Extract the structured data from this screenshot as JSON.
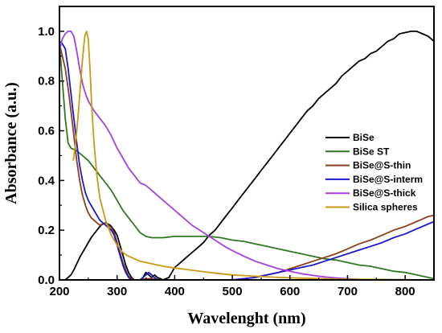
{
  "chart_data": {
    "type": "line",
    "xlabel": "Wavelenght (nm)",
    "ylabel": "Absorbance (a.u.)",
    "xlim": [
      200,
      850
    ],
    "ylim": [
      0.0,
      1.1
    ],
    "xticks": [
      200,
      300,
      400,
      500,
      600,
      700,
      800
    ],
    "yticks": [
      0.0,
      0.2,
      0.4,
      0.6,
      0.8,
      1.0
    ],
    "grid": false,
    "legend_position": "right",
    "series": [
      {
        "name": "BiSe",
        "color": "#000000",
        "points": [
          [
            200,
            0.0
          ],
          [
            210,
            0.0
          ],
          [
            220,
            0.02
          ],
          [
            225,
            0.04
          ],
          [
            235,
            0.09
          ],
          [
            245,
            0.13
          ],
          [
            255,
            0.17
          ],
          [
            265,
            0.2
          ],
          [
            272,
            0.22
          ],
          [
            280,
            0.23
          ],
          [
            288,
            0.22
          ],
          [
            295,
            0.2
          ],
          [
            300,
            0.18
          ],
          [
            305,
            0.14
          ],
          [
            310,
            0.1
          ],
          [
            315,
            0.06
          ],
          [
            320,
            0.03
          ],
          [
            325,
            0.01
          ],
          [
            330,
            0.0
          ],
          [
            340,
            0.0
          ],
          [
            345,
            0.01
          ],
          [
            350,
            0.03
          ],
          [
            355,
            0.02
          ],
          [
            360,
            0.01
          ],
          [
            365,
            0.02
          ],
          [
            370,
            0.01
          ],
          [
            380,
            0.0
          ],
          [
            390,
            0.01
          ],
          [
            395,
            0.03
          ],
          [
            400,
            0.05
          ],
          [
            410,
            0.07
          ],
          [
            420,
            0.09
          ],
          [
            430,
            0.11
          ],
          [
            440,
            0.13
          ],
          [
            450,
            0.15
          ],
          [
            460,
            0.18
          ],
          [
            470,
            0.2
          ],
          [
            480,
            0.23
          ],
          [
            490,
            0.26
          ],
          [
            500,
            0.29
          ],
          [
            510,
            0.32
          ],
          [
            520,
            0.35
          ],
          [
            530,
            0.38
          ],
          [
            540,
            0.41
          ],
          [
            550,
            0.44
          ],
          [
            560,
            0.47
          ],
          [
            570,
            0.5
          ],
          [
            580,
            0.53
          ],
          [
            590,
            0.56
          ],
          [
            600,
            0.59
          ],
          [
            610,
            0.62
          ],
          [
            620,
            0.65
          ],
          [
            630,
            0.68
          ],
          [
            640,
            0.7
          ],
          [
            650,
            0.73
          ],
          [
            660,
            0.75
          ],
          [
            670,
            0.77
          ],
          [
            680,
            0.79
          ],
          [
            690,
            0.82
          ],
          [
            700,
            0.84
          ],
          [
            710,
            0.86
          ],
          [
            720,
            0.88
          ],
          [
            730,
            0.89
          ],
          [
            740,
            0.91
          ],
          [
            750,
            0.92
          ],
          [
            760,
            0.94
          ],
          [
            770,
            0.96
          ],
          [
            780,
            0.97
          ],
          [
            790,
            0.99
          ],
          [
            800,
            0.995
          ],
          [
            810,
            1.0
          ],
          [
            820,
            1.0
          ],
          [
            830,
            0.99
          ],
          [
            840,
            0.98
          ],
          [
            850,
            0.96
          ]
        ]
      },
      {
        "name": "BiSe ST",
        "color": "#2d7a1e",
        "points": [
          [
            200,
            0.95
          ],
          [
            205,
            0.8
          ],
          [
            210,
            0.65
          ],
          [
            215,
            0.55
          ],
          [
            220,
            0.53
          ],
          [
            230,
            0.52
          ],
          [
            240,
            0.5
          ],
          [
            250,
            0.48
          ],
          [
            260,
            0.45
          ],
          [
            270,
            0.42
          ],
          [
            280,
            0.39
          ],
          [
            290,
            0.36
          ],
          [
            300,
            0.32
          ],
          [
            310,
            0.28
          ],
          [
            320,
            0.25
          ],
          [
            330,
            0.22
          ],
          [
            340,
            0.19
          ],
          [
            350,
            0.175
          ],
          [
            360,
            0.17
          ],
          [
            380,
            0.17
          ],
          [
            400,
            0.175
          ],
          [
            430,
            0.175
          ],
          [
            460,
            0.175
          ],
          [
            480,
            0.17
          ],
          [
            500,
            0.16
          ],
          [
            520,
            0.155
          ],
          [
            540,
            0.145
          ],
          [
            560,
            0.135
          ],
          [
            580,
            0.125
          ],
          [
            600,
            0.115
          ],
          [
            620,
            0.105
          ],
          [
            640,
            0.095
          ],
          [
            660,
            0.085
          ],
          [
            680,
            0.08
          ],
          [
            700,
            0.07
          ],
          [
            720,
            0.06
          ],
          [
            740,
            0.055
          ],
          [
            760,
            0.045
          ],
          [
            780,
            0.035
          ],
          [
            800,
            0.03
          ],
          [
            820,
            0.02
          ],
          [
            840,
            0.01
          ],
          [
            850,
            0.005
          ]
        ]
      },
      {
        "name": "BiSe@S-thin",
        "color": "#8b3f1a",
        "points": [
          [
            200,
            0.95
          ],
          [
            205,
            0.9
          ],
          [
            210,
            0.85
          ],
          [
            215,
            0.77
          ],
          [
            220,
            0.68
          ],
          [
            225,
            0.58
          ],
          [
            230,
            0.48
          ],
          [
            235,
            0.4
          ],
          [
            240,
            0.34
          ],
          [
            245,
            0.3
          ],
          [
            250,
            0.27
          ],
          [
            255,
            0.25
          ],
          [
            260,
            0.24
          ],
          [
            265,
            0.23
          ],
          [
            270,
            0.22
          ],
          [
            280,
            0.23
          ],
          [
            290,
            0.21
          ],
          [
            295,
            0.19
          ],
          [
            300,
            0.15
          ],
          [
            305,
            0.11
          ],
          [
            310,
            0.07
          ],
          [
            315,
            0.04
          ],
          [
            320,
            0.015
          ],
          [
            325,
            0.005
          ],
          [
            330,
            0.0
          ],
          [
            340,
            0.0
          ],
          [
            350,
            0.005
          ],
          [
            360,
            0.005
          ],
          [
            380,
            0.0
          ],
          [
            400,
            0.0
          ],
          [
            420,
            0.0
          ],
          [
            440,
            0.0
          ],
          [
            460,
            0.0
          ],
          [
            480,
            0.0
          ],
          [
            500,
            0.0
          ],
          [
            520,
            0.005
          ],
          [
            540,
            0.01
          ],
          [
            560,
            0.02
          ],
          [
            580,
            0.03
          ],
          [
            600,
            0.045
          ],
          [
            620,
            0.06
          ],
          [
            640,
            0.075
          ],
          [
            660,
            0.09
          ],
          [
            680,
            0.105
          ],
          [
            700,
            0.125
          ],
          [
            720,
            0.145
          ],
          [
            740,
            0.16
          ],
          [
            760,
            0.18
          ],
          [
            780,
            0.2
          ],
          [
            800,
            0.215
          ],
          [
            820,
            0.235
          ],
          [
            840,
            0.255
          ],
          [
            850,
            0.26
          ]
        ]
      },
      {
        "name": "BiSe@S-interm",
        "color": "#1a1acc",
        "points": [
          [
            200,
            0.96
          ],
          [
            205,
            0.95
          ],
          [
            210,
            0.93
          ],
          [
            215,
            0.85
          ],
          [
            220,
            0.75
          ],
          [
            225,
            0.65
          ],
          [
            230,
            0.55
          ],
          [
            235,
            0.46
          ],
          [
            240,
            0.4
          ],
          [
            245,
            0.35
          ],
          [
            250,
            0.32
          ],
          [
            260,
            0.28
          ],
          [
            270,
            0.24
          ],
          [
            280,
            0.22
          ],
          [
            290,
            0.2
          ],
          [
            295,
            0.18
          ],
          [
            300,
            0.14
          ],
          [
            305,
            0.1
          ],
          [
            310,
            0.06
          ],
          [
            315,
            0.03
          ],
          [
            320,
            0.01
          ],
          [
            325,
            0.0
          ],
          [
            340,
            0.0
          ],
          [
            350,
            0.02
          ],
          [
            355,
            0.03
          ],
          [
            360,
            0.02
          ],
          [
            365,
            0.01
          ],
          [
            370,
            0.0
          ],
          [
            380,
            0.0
          ],
          [
            400,
            0.0
          ],
          [
            440,
            0.0
          ],
          [
            480,
            0.0
          ],
          [
            500,
            0.0
          ],
          [
            520,
            0.005
          ],
          [
            540,
            0.01
          ],
          [
            560,
            0.02
          ],
          [
            580,
            0.03
          ],
          [
            600,
            0.04
          ],
          [
            620,
            0.05
          ],
          [
            640,
            0.06
          ],
          [
            660,
            0.075
          ],
          [
            680,
            0.09
          ],
          [
            700,
            0.105
          ],
          [
            720,
            0.12
          ],
          [
            740,
            0.135
          ],
          [
            760,
            0.15
          ],
          [
            780,
            0.17
          ],
          [
            800,
            0.185
          ],
          [
            820,
            0.205
          ],
          [
            840,
            0.225
          ],
          [
            850,
            0.235
          ]
        ]
      },
      {
        "name": "BiSe@S-thick",
        "color": "#a640e0",
        "points": [
          [
            200,
            0.92
          ],
          [
            205,
            0.97
          ],
          [
            210,
            0.99
          ],
          [
            215,
            1.0
          ],
          [
            220,
            1.0
          ],
          [
            225,
            0.98
          ],
          [
            230,
            0.92
          ],
          [
            235,
            0.85
          ],
          [
            240,
            0.79
          ],
          [
            245,
            0.75
          ],
          [
            250,
            0.72
          ],
          [
            260,
            0.68
          ],
          [
            270,
            0.65
          ],
          [
            280,
            0.62
          ],
          [
            290,
            0.58
          ],
          [
            300,
            0.53
          ],
          [
            310,
            0.49
          ],
          [
            320,
            0.45
          ],
          [
            330,
            0.42
          ],
          [
            340,
            0.39
          ],
          [
            350,
            0.38
          ],
          [
            360,
            0.36
          ],
          [
            370,
            0.34
          ],
          [
            380,
            0.32
          ],
          [
            390,
            0.3
          ],
          [
            400,
            0.28
          ],
          [
            410,
            0.26
          ],
          [
            420,
            0.24
          ],
          [
            430,
            0.22
          ],
          [
            440,
            0.205
          ],
          [
            450,
            0.19
          ],
          [
            460,
            0.175
          ],
          [
            470,
            0.16
          ],
          [
            480,
            0.145
          ],
          [
            490,
            0.13
          ],
          [
            500,
            0.118
          ],
          [
            520,
            0.095
          ],
          [
            540,
            0.075
          ],
          [
            560,
            0.06
          ],
          [
            580,
            0.045
          ],
          [
            600,
            0.035
          ],
          [
            620,
            0.025
          ],
          [
            640,
            0.018
          ],
          [
            660,
            0.012
          ],
          [
            680,
            0.008
          ],
          [
            700,
            0.005
          ],
          [
            740,
            0.0
          ],
          [
            780,
            0.0
          ],
          [
            820,
            0.0
          ],
          [
            850,
            0.0
          ]
        ]
      },
      {
        "name": "Silica spheres",
        "color": "#c99a14",
        "points": [
          [
            224,
            0.48
          ],
          [
            228,
            0.55
          ],
          [
            232,
            0.65
          ],
          [
            236,
            0.77
          ],
          [
            240,
            0.89
          ],
          [
            244,
            0.98
          ],
          [
            247,
            1.0
          ],
          [
            250,
            0.97
          ],
          [
            253,
            0.85
          ],
          [
            256,
            0.7
          ],
          [
            260,
            0.55
          ],
          [
            265,
            0.42
          ],
          [
            270,
            0.33
          ],
          [
            280,
            0.24
          ],
          [
            290,
            0.18
          ],
          [
            300,
            0.14
          ],
          [
            310,
            0.11
          ],
          [
            320,
            0.095
          ],
          [
            330,
            0.085
          ],
          [
            340,
            0.075
          ],
          [
            360,
            0.065
          ],
          [
            380,
            0.055
          ],
          [
            400,
            0.048
          ],
          [
            420,
            0.042
          ],
          [
            440,
            0.036
          ],
          [
            460,
            0.03
          ],
          [
            480,
            0.025
          ],
          [
            500,
            0.02
          ],
          [
            540,
            0.015
          ],
          [
            580,
            0.01
          ],
          [
            620,
            0.007
          ],
          [
            660,
            0.005
          ],
          [
            700,
            0.003
          ],
          [
            760,
            0.002
          ],
          [
            800,
            0.001
          ],
          [
            850,
            0.0
          ]
        ]
      }
    ]
  }
}
